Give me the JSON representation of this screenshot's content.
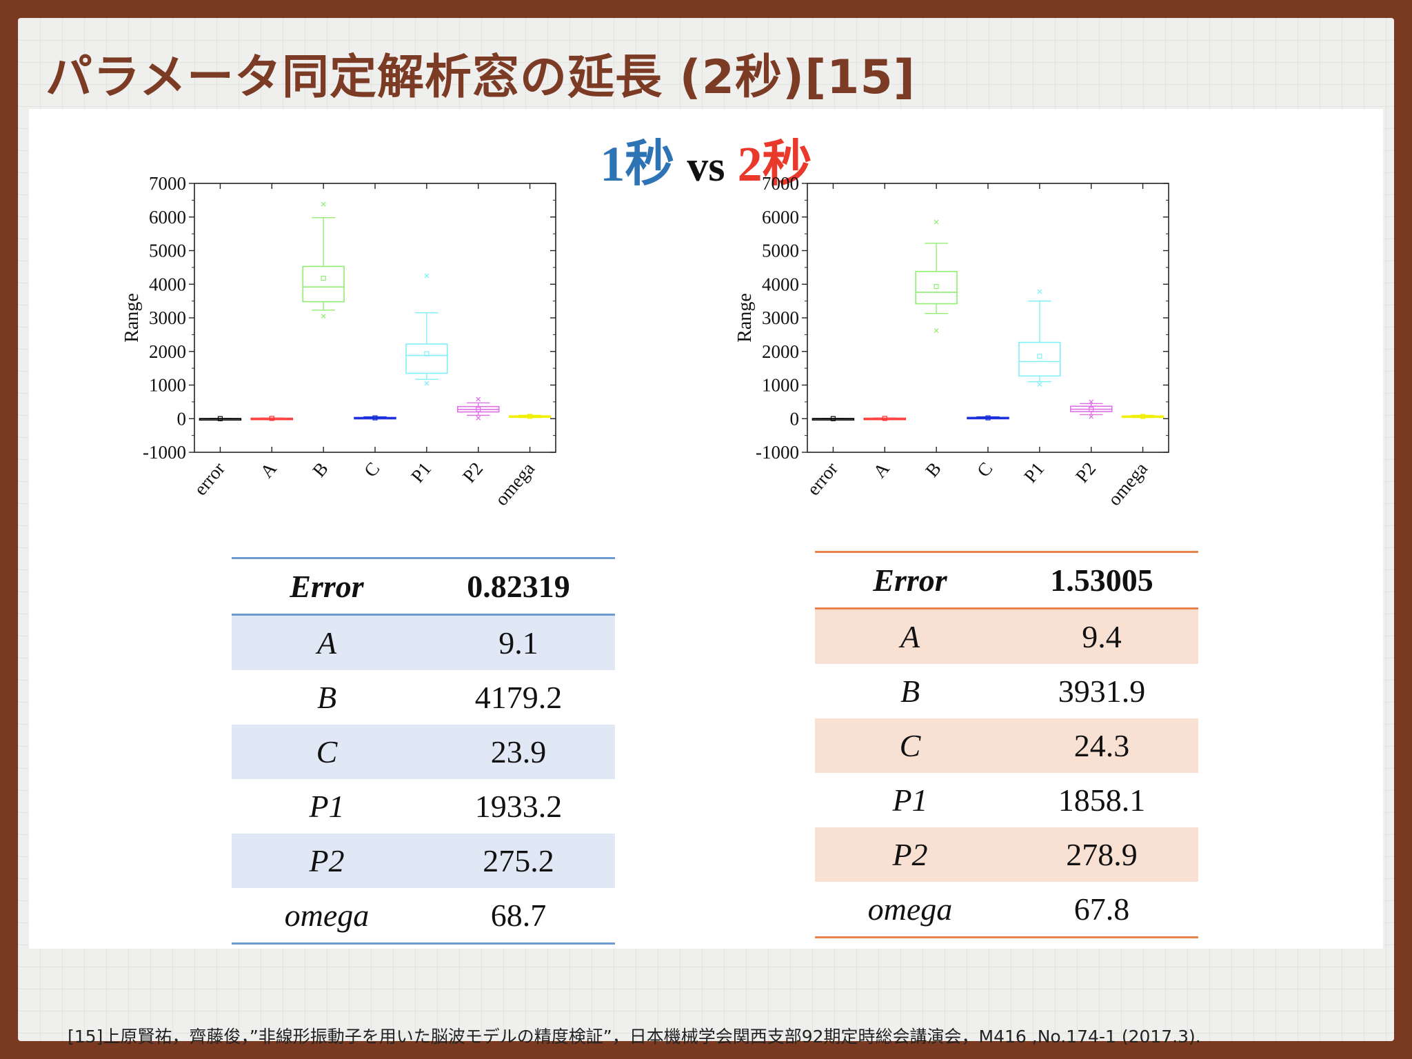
{
  "title": "パラメータ同定解析窓の延長 (2秒)[15]",
  "comparison": {
    "left": "1秒",
    "vs": "vs",
    "right": "2秒",
    "left_color": "#2e74b5",
    "right_color": "#e8392b"
  },
  "chart_data": [
    {
      "type": "box",
      "title": "",
      "xlabel": "",
      "ylabel": "Range",
      "ylim": [
        -1000,
        7000
      ],
      "yticks": [
        -1000,
        0,
        1000,
        2000,
        3000,
        4000,
        5000,
        6000,
        7000
      ],
      "grid": false,
      "categories": [
        "error",
        "A",
        "B",
        "C",
        "P1",
        "P2",
        "omega"
      ],
      "colors": [
        "#000000",
        "#ff3030",
        "#90ee70",
        "#1a2edc",
        "#80f0f8",
        "#e070e8",
        "#f0f000"
      ],
      "boxes": [
        {
          "q1": 0,
          "median": 1,
          "q3": 2,
          "whisker_low": -1,
          "whisker_high": 3,
          "mean": 1,
          "outliers": []
        },
        {
          "q1": 5,
          "median": 9,
          "q3": 13,
          "whisker_low": 2,
          "whisker_high": 17,
          "mean": 9,
          "outliers": []
        },
        {
          "q1": 3480,
          "median": 3920,
          "q3": 4530,
          "whisker_low": 3230,
          "whisker_high": 5980,
          "mean": 4179,
          "outliers": [
            6380,
            3050
          ]
        },
        {
          "q1": 10,
          "median": 23,
          "q3": 36,
          "whisker_low": 0,
          "whisker_high": 55,
          "mean": 24,
          "outliers": []
        },
        {
          "q1": 1350,
          "median": 1880,
          "q3": 2220,
          "whisker_low": 1170,
          "whisker_high": 3150,
          "mean": 1933,
          "outliers": [
            4250,
            1050
          ]
        },
        {
          "q1": 200,
          "median": 275,
          "q3": 360,
          "whisker_low": 100,
          "whisker_high": 470,
          "mean": 275,
          "outliers": [
            580,
            20
          ]
        },
        {
          "q1": 55,
          "median": 68,
          "q3": 82,
          "whisker_low": 35,
          "whisker_high": 100,
          "mean": 69,
          "outliers": []
        }
      ]
    },
    {
      "type": "box",
      "title": "",
      "xlabel": "",
      "ylabel": "Range",
      "ylim": [
        -1000,
        7000
      ],
      "yticks": [
        -1000,
        0,
        1000,
        2000,
        3000,
        4000,
        5000,
        6000,
        7000
      ],
      "grid": false,
      "categories": [
        "error",
        "A",
        "B",
        "C",
        "P1",
        "P2",
        "omega"
      ],
      "colors": [
        "#000000",
        "#ff3030",
        "#90ee70",
        "#1a2edc",
        "#80f0f8",
        "#e070e8",
        "#f0f000"
      ],
      "boxes": [
        {
          "q1": 0,
          "median": 1,
          "q3": 3,
          "whisker_low": -1,
          "whisker_high": 4,
          "mean": 2,
          "outliers": []
        },
        {
          "q1": 5,
          "median": 9,
          "q3": 13,
          "whisker_low": 2,
          "whisker_high": 17,
          "mean": 9,
          "outliers": []
        },
        {
          "q1": 3420,
          "median": 3760,
          "q3": 4380,
          "whisker_low": 3130,
          "whisker_high": 5220,
          "mean": 3932,
          "outliers": [
            5850,
            2620
          ]
        },
        {
          "q1": 10,
          "median": 24,
          "q3": 38,
          "whisker_low": 0,
          "whisker_high": 55,
          "mean": 24,
          "outliers": []
        },
        {
          "q1": 1270,
          "median": 1700,
          "q3": 2270,
          "whisker_low": 1100,
          "whisker_high": 3500,
          "mean": 1858,
          "outliers": [
            3780,
            1020
          ]
        },
        {
          "q1": 210,
          "median": 280,
          "q3": 370,
          "whisker_low": 120,
          "whisker_high": 450,
          "mean": 279,
          "outliers": [
            500,
            60
          ]
        },
        {
          "q1": 55,
          "median": 67,
          "q3": 80,
          "whisker_low": 35,
          "whisker_high": 98,
          "mean": 68,
          "outliers": []
        }
      ]
    }
  ],
  "table_left": {
    "header": {
      "name": "Error",
      "value": "0.82319"
    },
    "rows": [
      {
        "name": "A",
        "value": "9.1"
      },
      {
        "name": "B",
        "value": "4179.2"
      },
      {
        "name": "C",
        "value": "23.9"
      },
      {
        "name": "P1",
        "value": "1933.2"
      },
      {
        "name": "P2",
        "value": "275.2"
      },
      {
        "name": "omega",
        "value": "68.7"
      }
    ]
  },
  "table_right": {
    "header": {
      "name": "Error",
      "value": "1.53005"
    },
    "rows": [
      {
        "name": "A",
        "value": "9.4"
      },
      {
        "name": "B",
        "value": "3931.9"
      },
      {
        "name": "C",
        "value": "24.3"
      },
      {
        "name": "P1",
        "value": "1858.1"
      },
      {
        "name": "P2",
        "value": "278.9"
      },
      {
        "name": "omega",
        "value": "67.8"
      }
    ]
  },
  "footer": "[15]上原賢祐，齊藤俊，”非線形振動子を用いた脳波モデルの精度検証”，日本機械学会関西支部92期定時総会講演会，M416 ,No.174-1 (2017.3)."
}
